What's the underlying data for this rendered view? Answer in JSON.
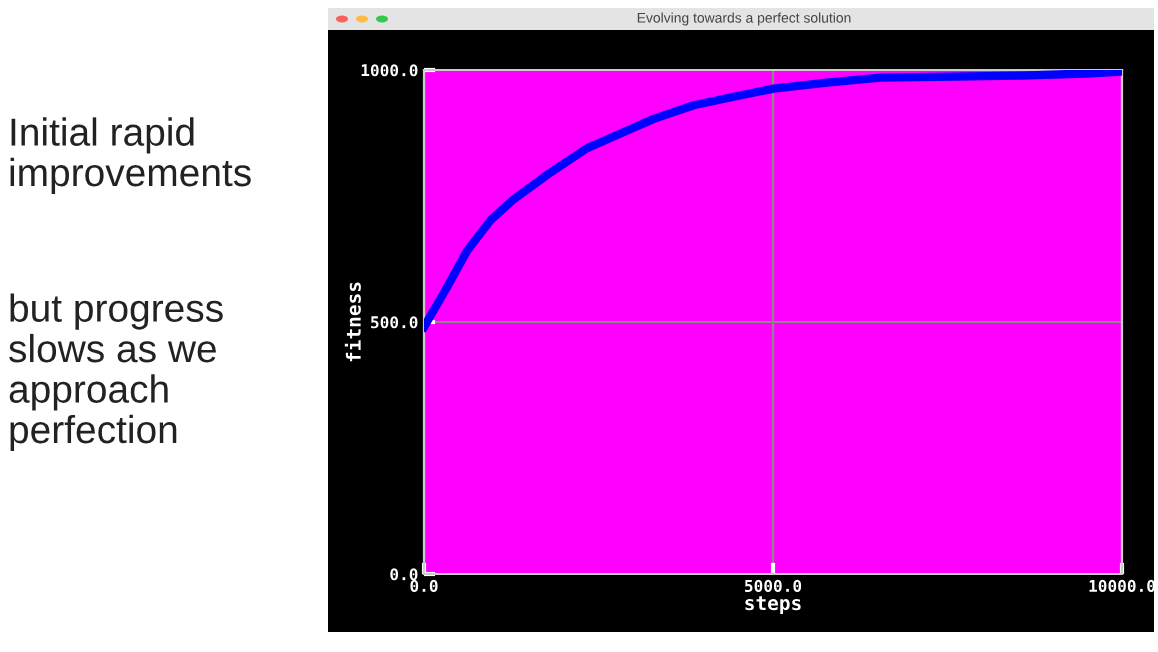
{
  "chart_data": {
    "type": "line",
    "title": "Evolving towards a perfect solution",
    "xlabel": "steps",
    "ylabel": "fitness",
    "annotations": [
      "Initial rapid improvements",
      "but progress slows as we approach perfection"
    ],
    "x": [
      0,
      334,
      620,
      954,
      1288,
      1765,
      2338,
      2815,
      3292,
      3864,
      4437,
      5010,
      5773,
      6536,
      7586,
      8540,
      9494,
      10000
    ],
    "series": [
      {
        "color": "#0000ff",
        "values": [
          490,
          570,
          642,
          702,
          744,
          792,
          845,
          874,
          903,
          930,
          947,
          963,
          975,
          985,
          987,
          989,
          993,
          997
        ]
      }
    ],
    "xlim": [
      0,
      10000
    ],
    "ylim": [
      0,
      1000
    ],
    "xticks": [
      {
        "value": 0,
        "label": "0.0"
      },
      {
        "value": 5000,
        "label": "5000.0"
      },
      {
        "value": 10000,
        "label": "10000.0"
      }
    ],
    "yticks": [
      {
        "value": 0,
        "label": "0.0"
      },
      {
        "value": 500,
        "label": "500.0"
      },
      {
        "value": 1000,
        "label": "1000.0"
      }
    ],
    "grid": true,
    "legend": false,
    "marker": "none",
    "line_style": "solid"
  }
}
